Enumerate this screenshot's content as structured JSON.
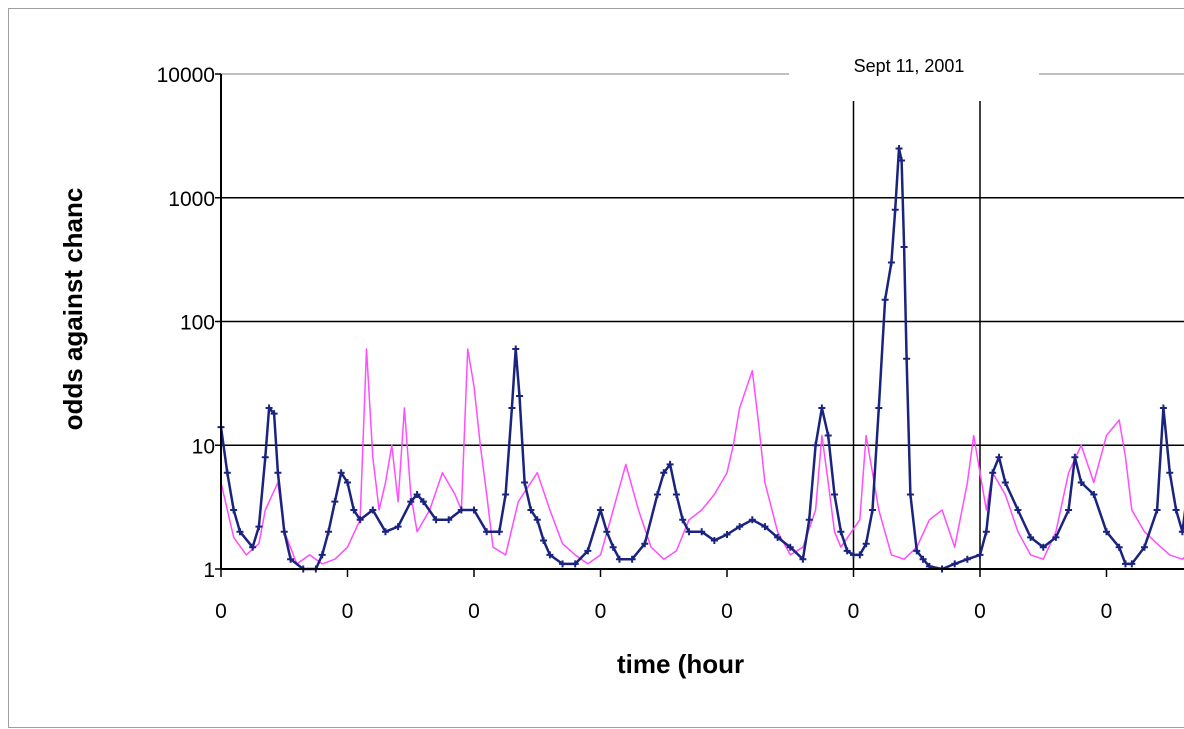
{
  "chart_data": {
    "type": "line",
    "y_scale": "log",
    "ylim": [
      1,
      10000
    ],
    "y_ticks": [
      1,
      10,
      100,
      1000,
      10000
    ],
    "y_tick_labels": [
      "1",
      "10",
      "100",
      "1000",
      "10000"
    ],
    "x_tick_labels": [
      "0",
      "0",
      "0",
      "0",
      "0",
      "0",
      "0",
      "0"
    ],
    "xlabel": "time (hour",
    "ylabel": "odds against chanc",
    "grid": "horizontal at decades plus two vertical event lines",
    "legend": "none",
    "annotations": [
      {
        "text": "Sept 11, 2001"
      }
    ],
    "x_domain": [
      0,
      7.7
    ],
    "event_lines_x": [
      5,
      6
    ],
    "series": [
      {
        "color": "#ff4dff",
        "markers": false,
        "points": [
          [
            0,
            5
          ],
          [
            0.1,
            1.8
          ],
          [
            0.2,
            1.3
          ],
          [
            0.3,
            1.6
          ],
          [
            0.35,
            3
          ],
          [
            0.45,
            5
          ],
          [
            0.5,
            2
          ],
          [
            0.6,
            1.1
          ],
          [
            0.7,
            1.3
          ],
          [
            0.8,
            1.1
          ],
          [
            0.9,
            1.2
          ],
          [
            1,
            1.5
          ],
          [
            1.1,
            2.5
          ],
          [
            1.15,
            60
          ],
          [
            1.2,
            8
          ],
          [
            1.25,
            3
          ],
          [
            1.3,
            5
          ],
          [
            1.35,
            10
          ],
          [
            1.4,
            3.5
          ],
          [
            1.45,
            20
          ],
          [
            1.5,
            4
          ],
          [
            1.55,
            2
          ],
          [
            1.65,
            3
          ],
          [
            1.75,
            6
          ],
          [
            1.85,
            4
          ],
          [
            1.9,
            3
          ],
          [
            1.95,
            60
          ],
          [
            2,
            30
          ],
          [
            2.05,
            10
          ],
          [
            2.1,
            4
          ],
          [
            2.15,
            1.5
          ],
          [
            2.25,
            1.3
          ],
          [
            2.35,
            3.5
          ],
          [
            2.5,
            6
          ],
          [
            2.6,
            3
          ],
          [
            2.7,
            1.6
          ],
          [
            2.8,
            1.3
          ],
          [
            2.9,
            1.1
          ],
          [
            3,
            1.3
          ],
          [
            3.1,
            3
          ],
          [
            3.2,
            7
          ],
          [
            3.3,
            3
          ],
          [
            3.4,
            1.5
          ],
          [
            3.5,
            1.2
          ],
          [
            3.6,
            1.4
          ],
          [
            3.7,
            2.5
          ],
          [
            3.8,
            3
          ],
          [
            3.9,
            4
          ],
          [
            4,
            6
          ],
          [
            4.05,
            10
          ],
          [
            4.1,
            20
          ],
          [
            4.2,
            40
          ],
          [
            4.25,
            15
          ],
          [
            4.3,
            5
          ],
          [
            4.4,
            2
          ],
          [
            4.5,
            1.3
          ],
          [
            4.6,
            1.5
          ],
          [
            4.7,
            3
          ],
          [
            4.75,
            12
          ],
          [
            4.8,
            5
          ],
          [
            4.85,
            2
          ],
          [
            4.9,
            1.5
          ],
          [
            5.05,
            2.5
          ],
          [
            5.1,
            12
          ],
          [
            5.15,
            6
          ],
          [
            5.2,
            3
          ],
          [
            5.3,
            1.3
          ],
          [
            5.4,
            1.2
          ],
          [
            5.5,
            1.5
          ],
          [
            5.6,
            2.5
          ],
          [
            5.7,
            3
          ],
          [
            5.8,
            1.5
          ],
          [
            5.9,
            5
          ],
          [
            5.95,
            12
          ],
          [
            6,
            6
          ],
          [
            6.05,
            3
          ],
          [
            6.1,
            6
          ],
          [
            6.2,
            4
          ],
          [
            6.3,
            2
          ],
          [
            6.4,
            1.3
          ],
          [
            6.5,
            1.2
          ],
          [
            6.6,
            2
          ],
          [
            6.7,
            6
          ],
          [
            6.8,
            10
          ],
          [
            6.9,
            5
          ],
          [
            7,
            12
          ],
          [
            7.1,
            16
          ],
          [
            7.15,
            8
          ],
          [
            7.2,
            3
          ],
          [
            7.3,
            2
          ],
          [
            7.4,
            1.6
          ],
          [
            7.5,
            1.3
          ],
          [
            7.6,
            1.2
          ],
          [
            7.7,
            1.5
          ]
        ]
      },
      {
        "color": "#1a237e",
        "markers": true,
        "points": [
          [
            0,
            14
          ],
          [
            0.05,
            6
          ],
          [
            0.1,
            3
          ],
          [
            0.15,
            2
          ],
          [
            0.25,
            1.5
          ],
          [
            0.3,
            2.2
          ],
          [
            0.35,
            8
          ],
          [
            0.38,
            20
          ],
          [
            0.42,
            18
          ],
          [
            0.45,
            6
          ],
          [
            0.5,
            2
          ],
          [
            0.55,
            1.2
          ],
          [
            0.65,
            1
          ],
          [
            0.75,
            1
          ],
          [
            0.8,
            1.3
          ],
          [
            0.85,
            2
          ],
          [
            0.9,
            3.5
          ],
          [
            0.95,
            6
          ],
          [
            1,
            5
          ],
          [
            1.05,
            3
          ],
          [
            1.1,
            2.5
          ],
          [
            1.2,
            3
          ],
          [
            1.3,
            2
          ],
          [
            1.4,
            2.2
          ],
          [
            1.5,
            3.5
          ],
          [
            1.55,
            4
          ],
          [
            1.6,
            3.5
          ],
          [
            1.7,
            2.5
          ],
          [
            1.8,
            2.5
          ],
          [
            1.9,
            3
          ],
          [
            2,
            3
          ],
          [
            2.1,
            2
          ],
          [
            2.2,
            2
          ],
          [
            2.25,
            4
          ],
          [
            2.3,
            20
          ],
          [
            2.33,
            60
          ],
          [
            2.36,
            25
          ],
          [
            2.4,
            5
          ],
          [
            2.45,
            3
          ],
          [
            2.5,
            2.5
          ],
          [
            2.55,
            1.7
          ],
          [
            2.6,
            1.3
          ],
          [
            2.7,
            1.1
          ],
          [
            2.8,
            1.1
          ],
          [
            2.9,
            1.4
          ],
          [
            3,
            3
          ],
          [
            3.05,
            2
          ],
          [
            3.1,
            1.5
          ],
          [
            3.15,
            1.2
          ],
          [
            3.25,
            1.2
          ],
          [
            3.35,
            1.6
          ],
          [
            3.45,
            4
          ],
          [
            3.5,
            6
          ],
          [
            3.55,
            7
          ],
          [
            3.6,
            4
          ],
          [
            3.65,
            2.5
          ],
          [
            3.7,
            2
          ],
          [
            3.8,
            2
          ],
          [
            3.9,
            1.7
          ],
          [
            4,
            1.9
          ],
          [
            4.1,
            2.2
          ],
          [
            4.2,
            2.5
          ],
          [
            4.3,
            2.2
          ],
          [
            4.4,
            1.8
          ],
          [
            4.5,
            1.5
          ],
          [
            4.6,
            1.2
          ],
          [
            4.65,
            2.5
          ],
          [
            4.7,
            10
          ],
          [
            4.75,
            20
          ],
          [
            4.8,
            12
          ],
          [
            4.85,
            4
          ],
          [
            4.9,
            2
          ],
          [
            4.95,
            1.4
          ],
          [
            5,
            1.3
          ],
          [
            5.05,
            1.3
          ],
          [
            5.1,
            1.6
          ],
          [
            5.15,
            3
          ],
          [
            5.2,
            20
          ],
          [
            5.25,
            150
          ],
          [
            5.3,
            300
          ],
          [
            5.33,
            800
          ],
          [
            5.36,
            2500
          ],
          [
            5.38,
            2000
          ],
          [
            5.4,
            400
          ],
          [
            5.42,
            50
          ],
          [
            5.45,
            4
          ],
          [
            5.5,
            1.4
          ],
          [
            5.55,
            1.2
          ],
          [
            5.6,
            1.05
          ],
          [
            5.7,
            1
          ],
          [
            5.8,
            1.1
          ],
          [
            5.9,
            1.2
          ],
          [
            6,
            1.3
          ],
          [
            6.05,
            2
          ],
          [
            6.1,
            6
          ],
          [
            6.15,
            8
          ],
          [
            6.2,
            5
          ],
          [
            6.3,
            3
          ],
          [
            6.4,
            1.8
          ],
          [
            6.5,
            1.5
          ],
          [
            6.6,
            1.8
          ],
          [
            6.7,
            3
          ],
          [
            6.75,
            8
          ],
          [
            6.8,
            5
          ],
          [
            6.9,
            4
          ],
          [
            7,
            2
          ],
          [
            7.1,
            1.5
          ],
          [
            7.15,
            1.1
          ],
          [
            7.2,
            1.1
          ],
          [
            7.3,
            1.5
          ],
          [
            7.4,
            3
          ],
          [
            7.45,
            20
          ],
          [
            7.5,
            6
          ],
          [
            7.55,
            3
          ],
          [
            7.6,
            2
          ],
          [
            7.65,
            5
          ],
          [
            7.7,
            4
          ]
        ]
      }
    ]
  }
}
